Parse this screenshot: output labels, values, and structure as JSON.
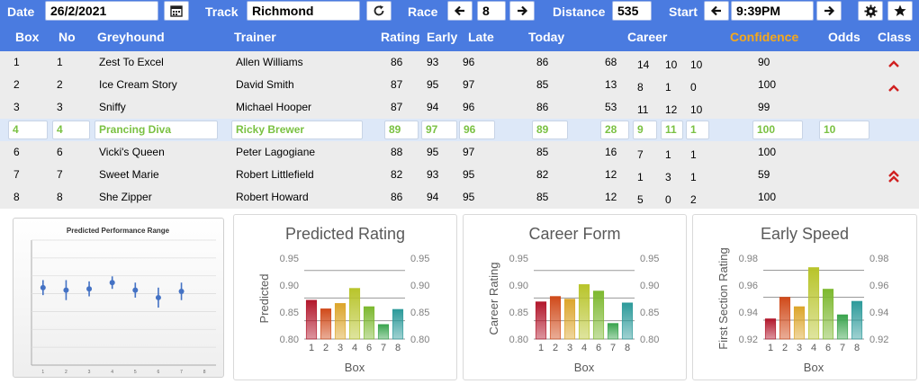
{
  "toolbar": {
    "date_label": "Date",
    "date_value": "26/2/2021",
    "track_label": "Track",
    "track_value": "Richmond",
    "race_label": "Race",
    "race_value": "8",
    "distance_label": "Distance",
    "distance_value": "535",
    "start_label": "Start",
    "start_value": "9:39PM"
  },
  "table": {
    "headers": {
      "box": "Box",
      "no": "No",
      "greyhound": "Greyhound",
      "trainer": "Trainer",
      "rating": "Rating",
      "early": "Early",
      "late": "Late",
      "today": "Today",
      "career": "Career",
      "confidence": "Confidence",
      "odds": "Odds",
      "class": "Class"
    },
    "rows": [
      {
        "box": "1",
        "no": "1",
        "greyhound": "Zest To Excel",
        "trainer": "Allen Williams",
        "rating": "86",
        "early": "93",
        "late": "96",
        "today": "86",
        "c1": "68",
        "c2": "14",
        "c3": "10",
        "c4": "10",
        "confidence": "90",
        "odds": "",
        "class_icon": "^"
      },
      {
        "box": "2",
        "no": "2",
        "greyhound": "Ice Cream Story",
        "trainer": "David Smith",
        "rating": "87",
        "early": "95",
        "late": "97",
        "today": "85",
        "c1": "13",
        "c2": "8",
        "c3": "1",
        "c4": "0",
        "confidence": "100",
        "odds": "",
        "class_icon": "^"
      },
      {
        "box": "3",
        "no": "3",
        "greyhound": "Sniffy",
        "trainer": "Michael Hooper",
        "rating": "87",
        "early": "94",
        "late": "96",
        "today": "86",
        "c1": "53",
        "c2": "11",
        "c3": "12",
        "c4": "10",
        "confidence": "99",
        "odds": "",
        "class_icon": ""
      },
      {
        "box": "4",
        "no": "4",
        "greyhound": "Prancing Diva",
        "trainer": "Ricky Brewer",
        "rating": "89",
        "early": "97",
        "late": "96",
        "today": "89",
        "c1": "28",
        "c2": "9",
        "c3": "11",
        "c4": "1",
        "confidence": "100",
        "odds": "10",
        "class_icon": ""
      },
      {
        "box": "6",
        "no": "6",
        "greyhound": "Vicki's Queen",
        "trainer": "Peter Lagogiane",
        "rating": "88",
        "early": "95",
        "late": "97",
        "today": "85",
        "c1": "16",
        "c2": "7",
        "c3": "1",
        "c4": "1",
        "confidence": "100",
        "odds": "",
        "class_icon": ""
      },
      {
        "box": "7",
        "no": "7",
        "greyhound": "Sweet Marie",
        "trainer": "Robert Littlefield",
        "rating": "82",
        "early": "93",
        "late": "95",
        "today": "82",
        "c1": "12",
        "c2": "1",
        "c3": "3",
        "c4": "1",
        "confidence": "59",
        "odds": "",
        "class_icon": "^^"
      },
      {
        "box": "8",
        "no": "8",
        "greyhound": "She Zipper",
        "trainer": "Robert Howard",
        "rating": "86",
        "early": "94",
        "late": "95",
        "today": "85",
        "c1": "12",
        "c2": "5",
        "c3": "0",
        "c4": "2",
        "confidence": "100",
        "odds": "",
        "class_icon": ""
      }
    ]
  },
  "chart_data": [
    {
      "type": "scatter",
      "title": "Predicted Performance Range",
      "x": [
        1,
        2,
        3,
        4,
        5,
        6,
        7
      ],
      "x_ticks": [
        "1",
        "2",
        "3",
        "4",
        "5",
        "6",
        "7",
        "8"
      ],
      "values": [
        0.62,
        0.6,
        0.61,
        0.66,
        0.6,
        0.54,
        0.59
      ],
      "error": [
        0.06,
        0.08,
        0.06,
        0.05,
        0.06,
        0.08,
        0.07
      ],
      "color": "#4472c4"
    },
    {
      "type": "bar",
      "title": "Predicted Rating",
      "categories": [
        "1",
        "2",
        "3",
        "4",
        "6",
        "7",
        "8"
      ],
      "values": [
        0.872,
        0.856,
        0.866,
        0.894,
        0.86,
        0.827,
        0.855
      ],
      "xlabel": "Box",
      "ylabel": "Predicted",
      "ylim": [
        0.8,
        0.95
      ],
      "yticks": [
        "0.80",
        "0.85",
        "0.90",
        "0.95"
      ],
      "ref_lines": [
        0.927,
        0.876,
        0.834
      ]
    },
    {
      "type": "bar",
      "title": "Career Form",
      "categories": [
        "1",
        "2",
        "3",
        "4",
        "6",
        "7",
        "8"
      ],
      "values": [
        0.869,
        0.879,
        0.874,
        0.901,
        0.889,
        0.829,
        0.867
      ],
      "xlabel": "Box",
      "ylabel": "Career Rating",
      "ylim": [
        0.8,
        0.95
      ],
      "yticks": [
        "0.80",
        "0.85",
        "0.90",
        "0.95"
      ],
      "ref_lines": [
        0.927,
        0.876,
        0.834
      ]
    },
    {
      "type": "bar",
      "title": "Early Speed",
      "categories": [
        "1",
        "2",
        "3",
        "4",
        "6",
        "7",
        "8"
      ],
      "values": [
        0.935,
        0.951,
        0.944,
        0.973,
        0.957,
        0.938,
        0.948
      ],
      "xlabel": "Box",
      "ylabel": "First Section Rating",
      "ylim": [
        0.92,
        0.98
      ],
      "yticks": [
        "0.92",
        "0.94",
        "0.96",
        "0.98"
      ],
      "ref_lines": [
        0.971,
        0.951,
        0.934
      ]
    }
  ],
  "colors": {
    "bar_gradient": [
      "#b2162b",
      "#d04a1a",
      "#dca52a",
      "#b8c42a",
      "#7cb82f",
      "#39a44d",
      "#2c9a9a"
    ]
  },
  "icons": {
    "calendar": "calendar-icon",
    "refresh": "refresh-icon",
    "prev": "arrow-left-icon",
    "next": "arrow-right-icon",
    "settings": "gear-icon",
    "favourite": "star-icon",
    "class_up": "chevron-up-icon",
    "class_double_up": "double-chevron-up-icon"
  }
}
